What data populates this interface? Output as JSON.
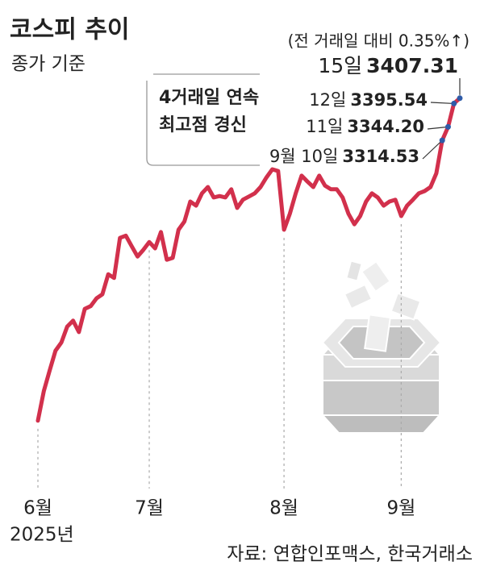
{
  "chart_data": {
    "type": "line",
    "title": "코스피 추이",
    "subtitle": "종가 기준",
    "note": "(전 거래일 대비 0.35%↑)",
    "annotation": [
      "4거래일 연속",
      "최고점 경신"
    ],
    "year_label": "2025년",
    "source": "자료: 연합인포맥스, 한국거래소",
    "color": "#d2304c",
    "point_color": "#2f5ba8",
    "categories": [
      "6월",
      null,
      null,
      null,
      null,
      null,
      null,
      null,
      null,
      null,
      null,
      null,
      null,
      null,
      null,
      null,
      null,
      null,
      null,
      "7월",
      null,
      null,
      null,
      null,
      null,
      null,
      null,
      null,
      null,
      null,
      null,
      null,
      null,
      null,
      null,
      null,
      null,
      null,
      null,
      null,
      null,
      null,
      "8월",
      null,
      null,
      null,
      null,
      null,
      null,
      null,
      null,
      null,
      null,
      null,
      null,
      null,
      null,
      null,
      null,
      null,
      null,
      null,
      "9월",
      null,
      null,
      null,
      null,
      null,
      null,
      null,
      null,
      null,
      null
    ],
    "values": [
      2698,
      2763,
      2808,
      2852,
      2870,
      2905,
      2918,
      2893,
      2944,
      2950,
      2967,
      2976,
      3020,
      3012,
      3100,
      3105,
      3082,
      3059,
      3074,
      3091,
      3077,
      3113,
      3052,
      3056,
      3118,
      3136,
      3180,
      3171,
      3198,
      3212,
      3189,
      3192,
      3189,
      3207,
      3166,
      3184,
      3191,
      3198,
      3212,
      3233,
      3251,
      3247,
      3118,
      3153,
      3198,
      3237,
      3224,
      3212,
      3237,
      3215,
      3207,
      3207,
      3189,
      3153,
      3130,
      3148,
      3180,
      3198,
      3189,
      3171,
      3180,
      3184,
      3148,
      3171,
      3184,
      3198,
      3203,
      3212,
      3242,
      3314.53,
      3344.2,
      3395.54,
      3407.31
    ],
    "value_labels": [
      null,
      null,
      null,
      null,
      null,
      null,
      null,
      null,
      null,
      null,
      null,
      null,
      null,
      null,
      null,
      null,
      null,
      null,
      null,
      null,
      null,
      null,
      null,
      null,
      null,
      null,
      null,
      null,
      null,
      null,
      null,
      null,
      null,
      null,
      null,
      null,
      null,
      null,
      null,
      null,
      null,
      null,
      null,
      null,
      null,
      null,
      null,
      null,
      null,
      null,
      null,
      null,
      null,
      null,
      null,
      null,
      null,
      null,
      null,
      null,
      null,
      null,
      null,
      null,
      null,
      null,
      null,
      null,
      null,
      "3314.53",
      "3344.20",
      "3395.54",
      "3407.31"
    ],
    "labels": [
      null,
      null,
      null,
      null,
      null,
      null,
      null,
      null,
      null,
      null,
      null,
      null,
      null,
      null,
      null,
      null,
      null,
      null,
      null,
      null,
      null,
      null,
      null,
      null,
      null,
      null,
      null,
      null,
      null,
      null,
      null,
      null,
      null,
      null,
      null,
      null,
      null,
      null,
      null,
      null,
      null,
      null,
      null,
      null,
      null,
      null,
      null,
      null,
      null,
      null,
      null,
      null,
      null,
      null,
      null,
      null,
      null,
      null,
      null,
      null,
      null,
      null,
      null,
      null,
      null,
      null,
      null,
      null,
      null,
      "9월 10일",
      "11일",
      "12일",
      "15일"
    ],
    "ylim": [
      2680,
      3430
    ]
  }
}
